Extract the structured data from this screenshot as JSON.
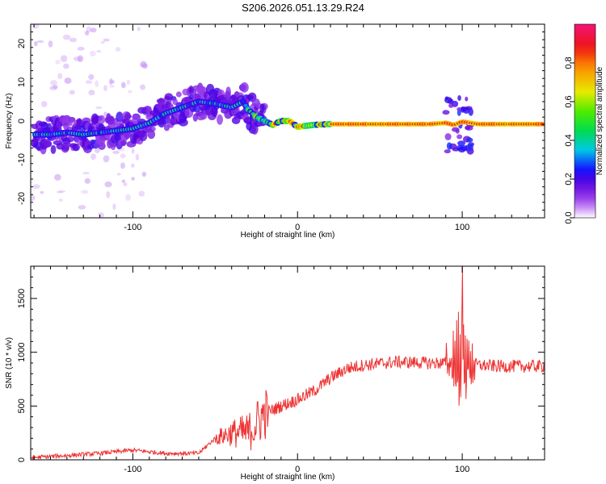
{
  "title": "S206.2026.051.13.29.R24",
  "chart_data": [
    {
      "type": "heatmap",
      "name": "spectrogram",
      "xlabel": "Height of straight line (km)",
      "ylabel": "Frequency (Hz)",
      "xlim": [
        -162,
        150
      ],
      "ylim": [
        -25,
        25
      ],
      "x_ticks": [
        -100,
        0,
        100
      ],
      "y_ticks": [
        20,
        10,
        0,
        -10,
        -20
      ],
      "ridge": {
        "x": [
          -158,
          -150,
          -140,
          -130,
          -120,
          -110,
          -100,
          -90,
          -80,
          -70,
          -60,
          -50,
          -40,
          -33,
          -30,
          -25,
          -20,
          -15,
          -10,
          -5,
          0,
          10,
          20,
          40,
          60,
          80,
          90,
          95,
          100,
          105,
          110,
          120,
          130,
          148
        ],
        "y": [
          -3.5,
          -3.5,
          -3,
          -3.5,
          -3,
          -2.5,
          -2,
          -0.5,
          2,
          3.5,
          5,
          4.5,
          3.5,
          5,
          3,
          1,
          0,
          -1,
          0,
          0,
          -1.5,
          -1,
          -0.8,
          -0.8,
          -0.8,
          -0.8,
          -0.5,
          -1,
          -0.2,
          -0.5,
          -0.8,
          -0.8,
          -0.8,
          -0.8
        ]
      },
      "colorbar": {
        "label": "Normalized spectral amplitude",
        "range": [
          0,
          1
        ],
        "ticks": [
          "0.0",
          "0.2",
          "0.4",
          "0.6",
          "0.8"
        ]
      }
    },
    {
      "type": "line",
      "name": "snr",
      "xlabel": "Height of straight line (km)",
      "ylabel": "SNR (10 * v/v)",
      "xlim": [
        -162,
        150
      ],
      "ylim": [
        0,
        1800
      ],
      "x_ticks": [
        -100,
        0,
        100
      ],
      "y_ticks": [
        0,
        500,
        1000,
        1500
      ],
      "color": "#ee3333",
      "trend": {
        "x": [
          -162,
          -140,
          -120,
          -100,
          -80,
          -60,
          -50,
          -40,
          -30,
          -20,
          -10,
          0,
          10,
          20,
          30,
          40,
          60,
          80,
          90,
          100,
          110,
          120,
          150
        ],
        "y": [
          20,
          40,
          60,
          90,
          60,
          60,
          200,
          250,
          250,
          430,
          500,
          560,
          640,
          760,
          850,
          880,
          910,
          900,
          900,
          900,
          880,
          870,
          870
        ]
      },
      "burst_region": [
        90,
        108
      ],
      "peak": {
        "x": 100,
        "y": 1800
      }
    }
  ]
}
